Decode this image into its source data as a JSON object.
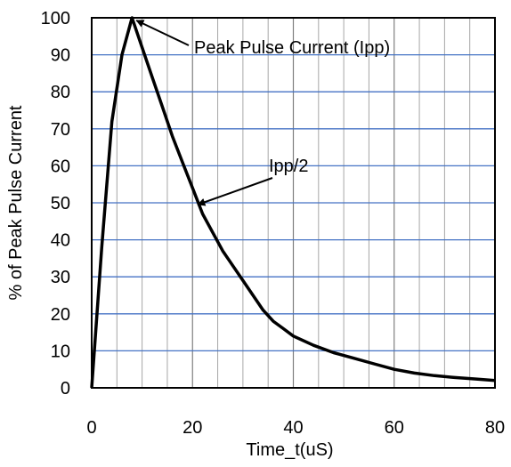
{
  "chart_data": {
    "type": "line",
    "title": "",
    "xlabel": "Time_t(uS)",
    "ylabel": "% of Peak Pulse Current",
    "xlim": [
      0,
      80
    ],
    "ylim": [
      0,
      100
    ],
    "x_ticks": [
      0,
      20,
      40,
      60,
      80
    ],
    "y_ticks": [
      0,
      10,
      20,
      30,
      40,
      50,
      60,
      70,
      80,
      90,
      100
    ],
    "x_minor_step": 5,
    "grid": true,
    "series": [
      {
        "x": [
          0,
          2,
          4,
          6,
          8,
          10,
          12,
          14,
          16,
          18,
          20,
          22,
          24,
          26,
          28,
          30,
          32,
          34,
          36,
          38,
          40,
          44,
          48,
          52,
          56,
          60,
          64,
          68,
          72,
          76,
          80
        ],
        "y": [
          0,
          38,
          72,
          90,
          100,
          92,
          84,
          76,
          68,
          61,
          54,
          47,
          42,
          37,
          33,
          29,
          25,
          21,
          18,
          16,
          14,
          11.5,
          9.5,
          8,
          6.5,
          5,
          4,
          3.3,
          2.8,
          2.4,
          2
        ]
      }
    ],
    "annotations": [
      {
        "text": "Peak Pulse Current (Ipp)",
        "point": [
          8,
          100
        ]
      },
      {
        "text": "Ipp/2",
        "point": [
          20,
          50
        ]
      }
    ]
  },
  "colors": {
    "grid_major": "#4472c4",
    "grid_minor": "#a6a6a6",
    "line": "#000000"
  }
}
